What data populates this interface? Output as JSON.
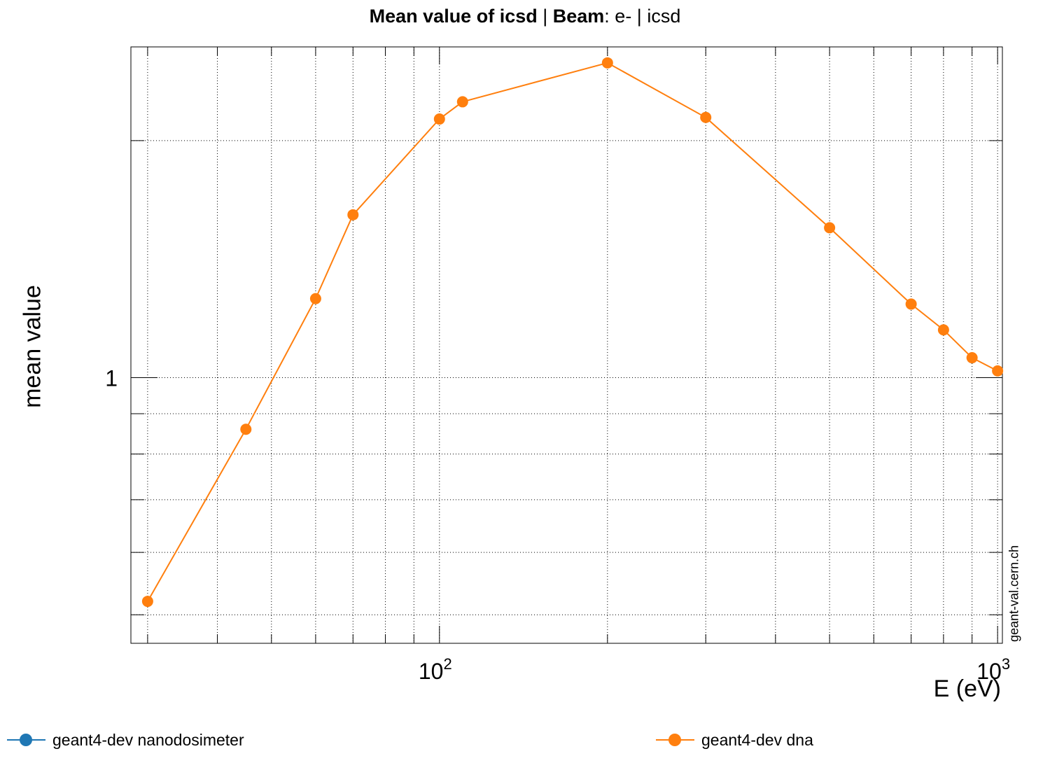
{
  "title": {
    "part1_bold": "Mean value of icsd",
    "part2": " | ",
    "part3_bold": "Beam",
    "part4": ": e- | icsd"
  },
  "watermark": "geant-val.cern.ch",
  "legend": [
    {
      "label": "geant4-dev nanodosimeter",
      "color": "#1f77b4"
    },
    {
      "label": "geant4-dev dna",
      "color": "#ff7f0e"
    }
  ],
  "chart_data": {
    "type": "line",
    "xlabel": "E (eV)",
    "ylabel": "mean value",
    "x_scale": "log",
    "y_scale": "log",
    "xlim": [
      28,
      1020
    ],
    "ylim": [
      0.46,
      2.63
    ],
    "x_ticks": [
      {
        "value": 100,
        "base": "10",
        "exp": "2"
      },
      {
        "value": 1000,
        "base": "10",
        "exp": "3"
      }
    ],
    "y_ticks": [
      {
        "value": 1,
        "label": "1"
      }
    ],
    "grid": true,
    "series": [
      {
        "name": "geant4-dev nanodosimeter",
        "color": "#1f77b4",
        "x": [],
        "y": []
      },
      {
        "name": "geant4-dev dna",
        "color": "#ff7f0e",
        "x": [
          30,
          45,
          60,
          70,
          100,
          110,
          200,
          300,
          500,
          700,
          800,
          900,
          1000
        ],
        "y": [
          0.52,
          0.86,
          1.26,
          1.61,
          2.13,
          2.24,
          2.51,
          2.14,
          1.55,
          1.24,
          1.15,
          1.06,
          1.02
        ]
      }
    ]
  }
}
